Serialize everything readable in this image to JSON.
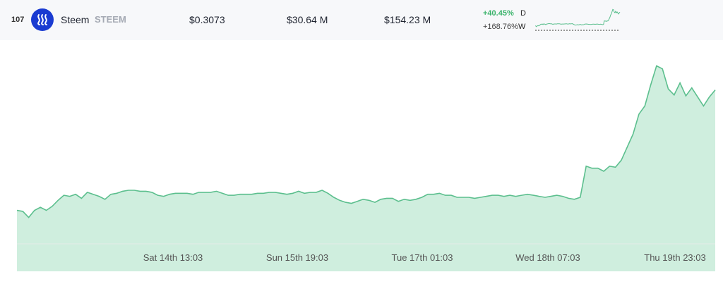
{
  "row": {
    "rank": "107",
    "name": "Steem",
    "symbol": "STEEM",
    "price": "$0.3073",
    "volume": "$30.64 M",
    "market_cap": "$154.23 M",
    "change_day": "+40.45%",
    "change_day_label": "D",
    "change_week": "+168.76%",
    "change_week_label": "W",
    "logo_icon": "steem-logo-icon",
    "colors": {
      "positive": "#3bb36b",
      "logo": "#1a3bd1",
      "chart_line": "#5cbf8e",
      "chart_fill": "#cfeede"
    }
  },
  "chart": {
    "x_ticks": [
      "Sat 14th 13:03",
      "Sun 15th 19:03",
      "Tue 17th 01:03",
      "Wed 18th 07:03",
      "Thu 19th 23:03"
    ]
  },
  "chart_data": {
    "type": "area",
    "x_ticks": [
      "Sat 14th 13:03",
      "Sun 15th 19:03",
      "Tue 17th 01:03",
      "Wed 18th 07:03",
      "Thu 19th 23:03"
    ],
    "series": [
      {
        "values": [
          0.33,
          0.329,
          0.323,
          0.33,
          0.333,
          0.33,
          0.334,
          0.34,
          0.345,
          0.344,
          0.346,
          0.342,
          0.348,
          0.346,
          0.344,
          0.341,
          0.346,
          0.347,
          0.349,
          0.35,
          0.35,
          0.349,
          0.349,
          0.348,
          0.345,
          0.344,
          0.346,
          0.347,
          0.347,
          0.347,
          0.346,
          0.348,
          0.348,
          0.348,
          0.349,
          0.347,
          0.345,
          0.345,
          0.346,
          0.346,
          0.346,
          0.347,
          0.347,
          0.348,
          0.348,
          0.347,
          0.346,
          0.347,
          0.349,
          0.347,
          0.348,
          0.348,
          0.35,
          0.347,
          0.343,
          0.34,
          0.338,
          0.337,
          0.339,
          0.341,
          0.34,
          0.338,
          0.341,
          0.342,
          0.342,
          0.339,
          0.341,
          0.34,
          0.341,
          0.343,
          0.346,
          0.346,
          0.347,
          0.345,
          0.345,
          0.343,
          0.343,
          0.343,
          0.342,
          0.343,
          0.344,
          0.345,
          0.345,
          0.344,
          0.345,
          0.344,
          0.345,
          0.346,
          0.345,
          0.344,
          0.343,
          0.344,
          0.345,
          0.344,
          0.342,
          0.341,
          0.343,
          0.374,
          0.372,
          0.372,
          0.369,
          0.374,
          0.373,
          0.38,
          0.393,
          0.406,
          0.426,
          0.434,
          0.455,
          0.474,
          0.471,
          0.451,
          0.445,
          0.457,
          0.444,
          0.452,
          0.443,
          0.434,
          0.443,
          0.45
        ]
      }
    ]
  }
}
